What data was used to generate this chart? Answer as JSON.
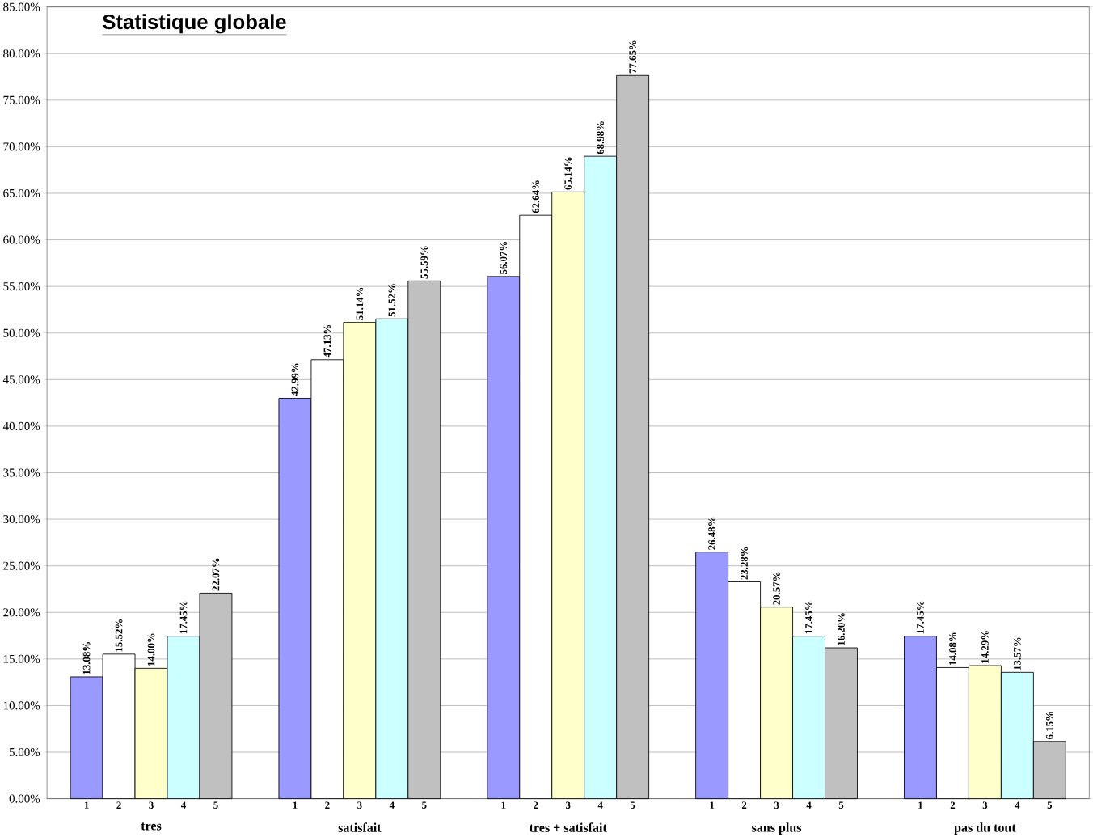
{
  "chart_data": {
    "type": "bar",
    "title": "Statistique globale",
    "categories": [
      "tres",
      "satisfait",
      "tres + satisfait",
      "sans plus",
      "pas du tout"
    ],
    "series": [
      {
        "name": "1",
        "color": "#9999ff",
        "values": [
          13.08,
          42.99,
          56.07,
          26.48,
          17.45
        ],
        "value_labels": [
          "13.08%",
          "42.99%",
          "56.07%",
          "26.48%",
          "17.45%"
        ]
      },
      {
        "name": "2",
        "color": "#ffffff",
        "values": [
          15.52,
          47.13,
          62.64,
          23.28,
          14.08
        ],
        "value_labels": [
          "15.52%",
          "47.13%",
          "62.64%",
          "23.28%",
          "14.08%"
        ]
      },
      {
        "name": "3",
        "color": "#ffffcc",
        "values": [
          14.0,
          51.14,
          65.14,
          20.57,
          14.29
        ],
        "value_labels": [
          "14.00%",
          "51.14%",
          "65.14%",
          "20.57%",
          "14.29%"
        ]
      },
      {
        "name": "4",
        "color": "#ccffff",
        "values": [
          17.45,
          51.52,
          68.98,
          17.45,
          13.57
        ],
        "value_labels": [
          "17.45%",
          "51.52%",
          "68.98%",
          "17.45%",
          "13.57%"
        ]
      },
      {
        "name": "5",
        "color": "#c0c0c0",
        "values": [
          22.07,
          55.59,
          77.65,
          16.2,
          6.15
        ],
        "value_labels": [
          "22.07%",
          "55.59%",
          "77.65%",
          "16.20%",
          "6.15%"
        ]
      }
    ],
    "ylim": [
      0,
      85
    ],
    "yticks": [
      {
        "value": 0,
        "label": "0.00%"
      },
      {
        "value": 5,
        "label": "5.00%"
      },
      {
        "value": 10,
        "label": "10.00%"
      },
      {
        "value": 15,
        "label": "15.00%"
      },
      {
        "value": 20,
        "label": "20.00%"
      },
      {
        "value": 25,
        "label": "25.00%"
      },
      {
        "value": 30,
        "label": "30.00%"
      },
      {
        "value": 35,
        "label": "35.00%"
      },
      {
        "value": 40,
        "label": "40.00%"
      },
      {
        "value": 45,
        "label": "45.00%"
      },
      {
        "value": 50,
        "label": "50.00%"
      },
      {
        "value": 55,
        "label": "55.00%"
      },
      {
        "value": 60,
        "label": "60.00%"
      },
      {
        "value": 65,
        "label": "65.00%"
      },
      {
        "value": 70,
        "label": "70.00%"
      },
      {
        "value": 75,
        "label": "75.00%"
      },
      {
        "value": 80,
        "label": "80.00%"
      },
      {
        "value": 85,
        "label": "85.00%"
      }
    ],
    "grid": "y",
    "legend": false
  }
}
